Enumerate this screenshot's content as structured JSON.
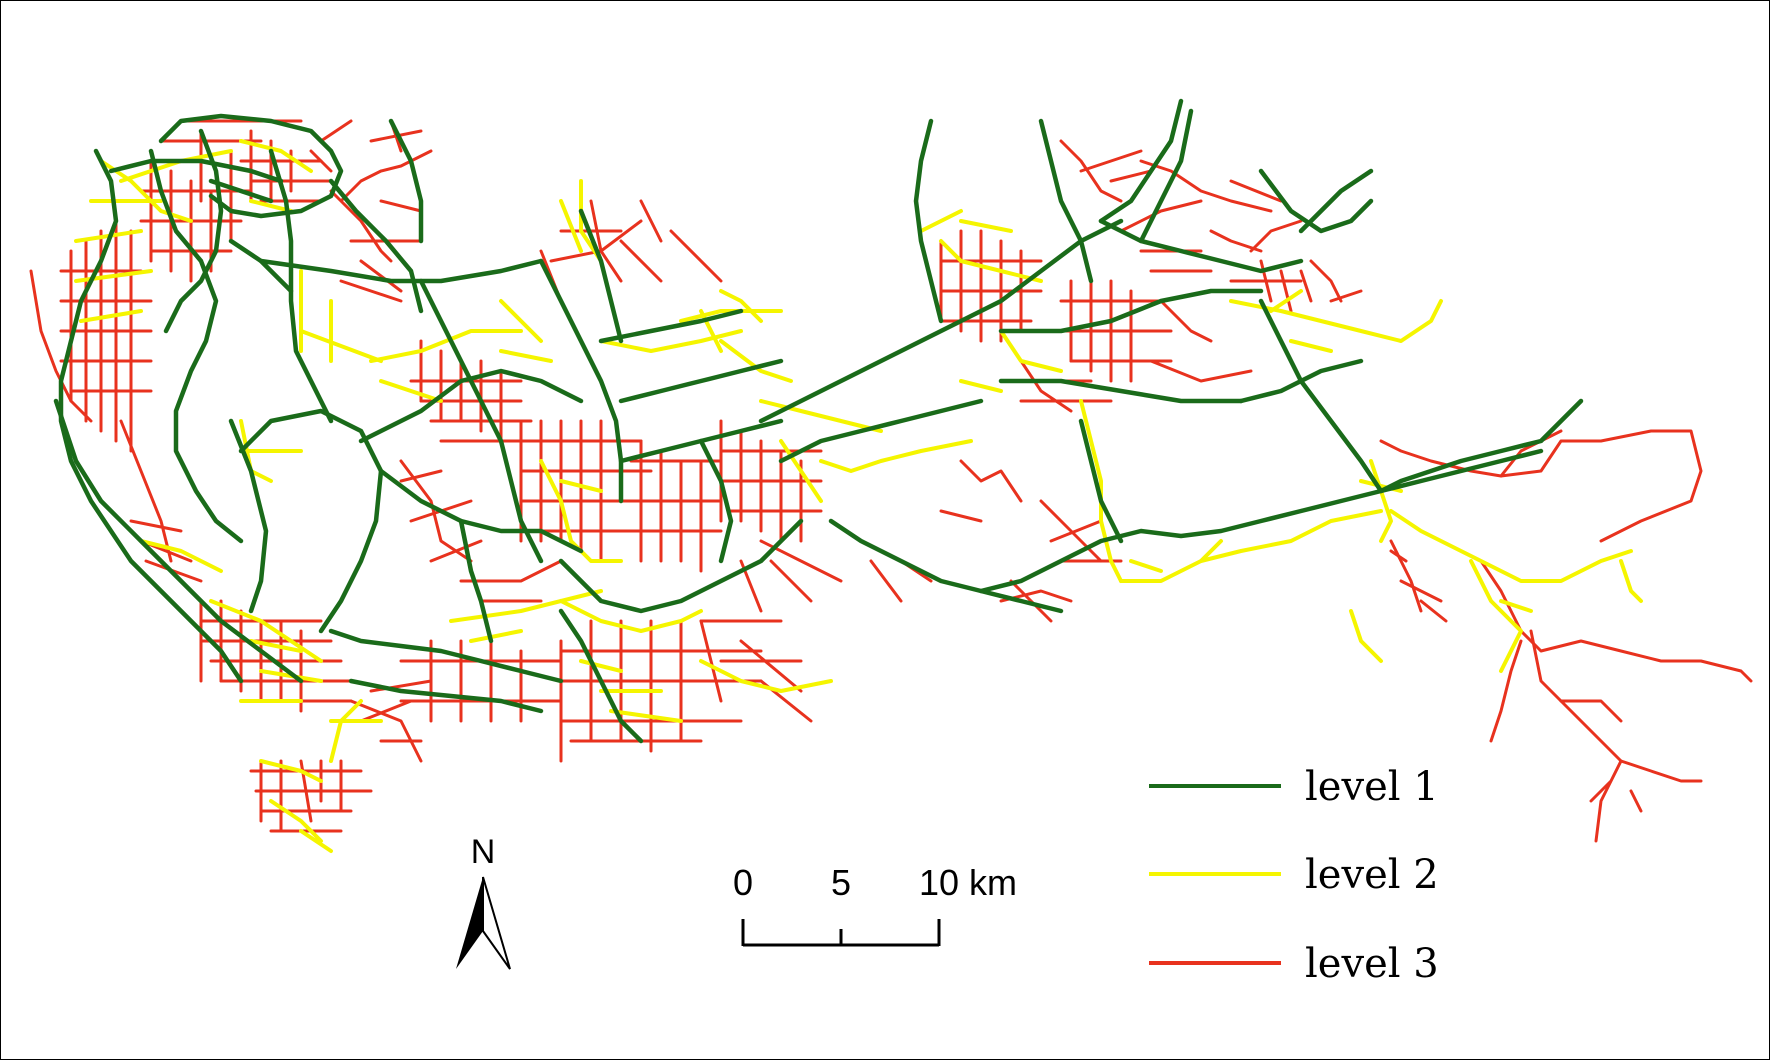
{
  "map": {
    "north_arrow": {
      "label": "N",
      "icon": "north-arrow-icon"
    },
    "scale_bar": {
      "ticks": [
        "0",
        "5",
        "10 km"
      ]
    },
    "legend": [
      {
        "label": "level 1",
        "color": "#1a6b1a"
      },
      {
        "label": "level 2",
        "color": "#f5f500"
      },
      {
        "label": "level 3",
        "color": "#e8321e"
      }
    ]
  }
}
